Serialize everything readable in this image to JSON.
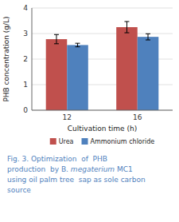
{
  "chart_data": {
    "type": "bar",
    "categories": [
      "12",
      "16"
    ],
    "series": [
      {
        "name": "Urea",
        "color": "#c0504d",
        "values": [
          2.78,
          3.25
        ],
        "errors": [
          0.18,
          0.22
        ]
      },
      {
        "name": "Ammonium chloride",
        "color": "#4f81bd",
        "values": [
          2.55,
          2.87
        ],
        "errors": [
          0.07,
          0.12
        ]
      }
    ],
    "xlabel": "Cultivation time (h)",
    "ylabel": "PHB concentration (g/L)",
    "ylim": [
      0,
      4
    ],
    "yticks": [
      0,
      1,
      2,
      3,
      4
    ],
    "grid": true,
    "legend": "bottom",
    "annotations": [
      {
        "text": "Fig. 3. Optimization  of  PHB",
        "color": "#4f81bd"
      },
      {
        "text": "production  by B. ",
        "color": "#4f81bd"
      },
      {
        "text": "megaterium",
        "color": "#4f81bd"
      },
      {
        "text": " MC1",
        "color": "#4f81bd"
      },
      {
        "text": "using oil palm tree  sap as sole carbon",
        "color": "#4f81bd"
      },
      {
        "text": "source",
        "color": "#4f81bd"
      }
    ]
  }
}
